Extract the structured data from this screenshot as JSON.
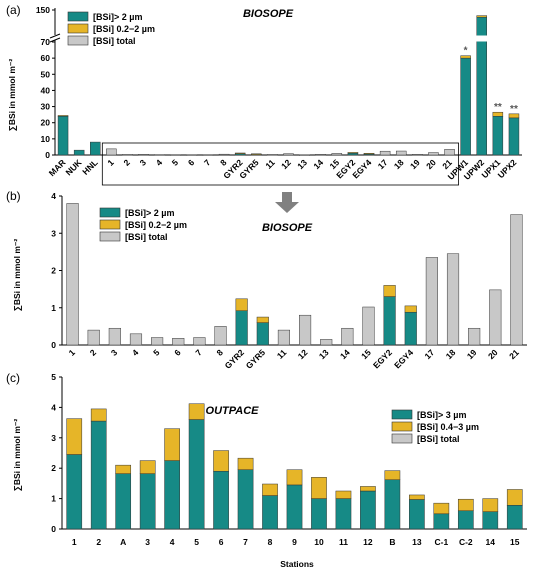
{
  "colors": {
    "gt": "#168a86",
    "mid": "#e6b528",
    "total": "#c8c8c8"
  },
  "chart_data": [
    {
      "panel_label": "(a)",
      "type": "bar",
      "title": "BIOSOPE",
      "ylabel": "∑BSi in mmol m⁻²",
      "broken_axis": true,
      "ylim_lower": [
        0,
        70
      ],
      "ylim_upper": [
        70,
        150
      ],
      "yticks_lower": [
        "0",
        "10",
        "20",
        "30",
        "40",
        "50",
        "60",
        "70"
      ],
      "yticks_upper": [
        "150"
      ],
      "legend": [
        "[BSi]> 2 µm",
        "[BSi] 0.2−2 µm",
        "[BSi] total"
      ],
      "categories": [
        "MAR",
        "NUK",
        "HNL",
        "1",
        "2",
        "3",
        "4",
        "5",
        "6",
        "7",
        "8",
        "GYR2",
        "GYR5",
        "11",
        "12",
        "13",
        "14",
        "15",
        "EGY2",
        "EGY4",
        "17",
        "18",
        "19",
        "20",
        "21",
        "UPW1",
        "UPW2",
        "UPX1",
        "UPX2"
      ],
      "series": [
        {
          "name": "[BSi]> 2 µm",
          "values": [
            24,
            3,
            8,
            0,
            0,
            0,
            0,
            0,
            0,
            0,
            0,
            0.9,
            0.6,
            0,
            0,
            0,
            0,
            0,
            1.3,
            0.9,
            0,
            0,
            0,
            0,
            0,
            60,
            127,
            24,
            23
          ]
        },
        {
          "name": "[BSi] 0.2−2 µm",
          "values": [
            0.5,
            0,
            0,
            0,
            0,
            0,
            0,
            0,
            0,
            0,
            0,
            0.35,
            0.15,
            0,
            0,
            0,
            0,
            0,
            0.3,
            0.15,
            0,
            0,
            0,
            0,
            0,
            1.5,
            5,
            2.5,
            2.5
          ]
        },
        {
          "name": "[BSi] total",
          "values": [
            0,
            0,
            0,
            3.8,
            0.4,
            0.45,
            0.3,
            0.2,
            0.18,
            0.2,
            0.5,
            0,
            0,
            0.4,
            0.8,
            0.15,
            0.45,
            1.0,
            0,
            0,
            2.35,
            2.45,
            0.45,
            1.5,
            3.5,
            0,
            0,
            0,
            0
          ]
        }
      ],
      "annotations": [
        {
          "text": "*",
          "category": "UPW1"
        },
        {
          "text": "**",
          "category": "UPX1"
        },
        {
          "text": "**",
          "category": "UPX2"
        }
      ]
    },
    {
      "panel_label": "(b)",
      "type": "bar",
      "title": "BIOSOPE",
      "ylabel": "∑BSi in mmol m⁻²",
      "ylim": [
        0,
        4
      ],
      "yticks": [
        "0",
        "1",
        "2",
        "3",
        "4"
      ],
      "legend": [
        "[BSi]> 2 µm",
        "[BSi] 0.2−2 µm",
        "[BSi] total"
      ],
      "categories": [
        "1",
        "2",
        "3",
        "4",
        "5",
        "6",
        "7",
        "8",
        "GYR2",
        "GYR5",
        "11",
        "12",
        "13",
        "14",
        "15",
        "EGY2",
        "EGY4",
        "17",
        "18",
        "19",
        "20",
        "21"
      ],
      "series": [
        {
          "name": "[BSi]> 2 µm",
          "values": [
            0,
            0,
            0,
            0,
            0,
            0,
            0,
            0,
            0.92,
            0.6,
            0,
            0,
            0,
            0,
            0,
            1.3,
            0.88,
            0,
            0,
            0,
            0,
            0
          ]
        },
        {
          "name": "[BSi] 0.2−2 µm",
          "values": [
            0,
            0,
            0,
            0,
            0,
            0,
            0,
            0,
            0.32,
            0.15,
            0,
            0,
            0,
            0,
            0,
            0.3,
            0.17,
            0,
            0,
            0,
            0,
            0
          ]
        },
        {
          "name": "[BSi] total",
          "values": [
            3.8,
            0.4,
            0.45,
            0.3,
            0.2,
            0.18,
            0.2,
            0.5,
            0,
            0,
            0.4,
            0.8,
            0.15,
            0.45,
            1.02,
            0,
            0,
            2.35,
            2.45,
            0.45,
            1.48,
            3.5
          ]
        }
      ]
    },
    {
      "panel_label": "(c)",
      "type": "bar",
      "title": "OUTPACE",
      "ylabel": "∑BSi in mmol m⁻²",
      "xlabel": "Stations",
      "ylim": [
        0,
        5
      ],
      "yticks": [
        "0",
        "1",
        "2",
        "3",
        "4",
        "5"
      ],
      "legend": [
        "[BSi]> 3 µm",
        "[BSi] 0.4−3 µm",
        "[BSi] total"
      ],
      "categories": [
        "1",
        "2",
        "A",
        "3",
        "4",
        "5",
        "6",
        "7",
        "8",
        "9",
        "10",
        "11",
        "12",
        "B",
        "13",
        "C-1",
        "C-2",
        "14",
        "15"
      ],
      "series": [
        {
          "name": "[BSi]> 3 µm",
          "values": [
            2.45,
            3.55,
            1.82,
            1.82,
            2.25,
            3.6,
            1.9,
            1.95,
            1.1,
            1.45,
            1.0,
            1.0,
            1.25,
            1.62,
            0.97,
            0.5,
            0.6,
            0.57,
            0.78
          ]
        },
        {
          "name": "[BSi] 0.4−3 µm",
          "values": [
            1.18,
            0.4,
            0.28,
            0.43,
            1.05,
            0.52,
            0.68,
            0.38,
            0.38,
            0.5,
            0.7,
            0.25,
            0.15,
            0.3,
            0.15,
            0.35,
            0.38,
            0.43,
            0.52
          ]
        }
      ]
    }
  ],
  "labels": {
    "arrow": "down-arrow-icon"
  }
}
